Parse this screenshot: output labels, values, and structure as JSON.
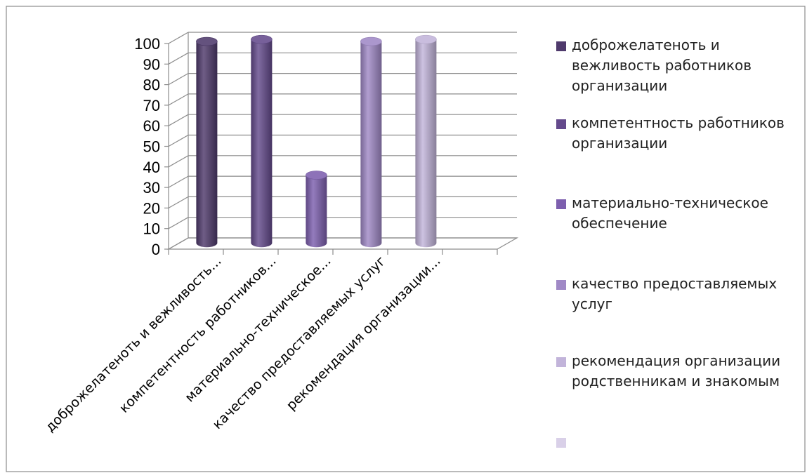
{
  "chart_data": {
    "type": "bar",
    "title": "",
    "xlabel": "",
    "ylabel": "",
    "ylim": [
      0,
      100
    ],
    "yticks": [
      0,
      10,
      20,
      30,
      40,
      50,
      60,
      70,
      80,
      90,
      100
    ],
    "grid": true,
    "legend_position": "right",
    "style": "3d-cylinder",
    "categories": [
      "доброжелатеноть и вежливость...",
      "компетентность работников...",
      "материально-техническое...",
      "качество предоставляемых услуг",
      "рекомендация организации..."
    ],
    "values": [
      98,
      99,
      33,
      98,
      99
    ],
    "bar_colors": [
      "#4f3a6c",
      "#644a8c",
      "#7d5fae",
      "#a089c6",
      "#c2b4da"
    ],
    "legend": [
      {
        "label": "доброжелатеноть и вежливость работников организации",
        "color": "#4f3a6c"
      },
      {
        "label": "компетентность работников организации",
        "color": "#644a8c"
      },
      {
        "label": "материально-техническое обеспечение",
        "color": "#7d5fae"
      },
      {
        "label": "качество предоставляемых услуг",
        "color": "#a089c6"
      },
      {
        "label": "рекомендация организации родственникам и знакомым",
        "color": "#c2b4da"
      },
      {
        "label": "",
        "color": "#d9d0e8"
      }
    ]
  }
}
